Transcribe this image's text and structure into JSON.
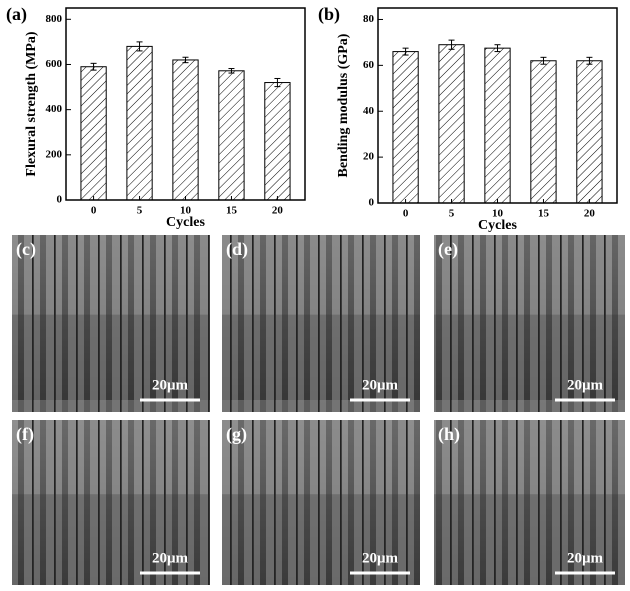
{
  "chart_data": [
    {
      "type": "bar",
      "panel": "(a)",
      "y_label": "Flexural strength (MPa)",
      "x_label": "Cycles",
      "categories": [
        "0",
        "5",
        "10",
        "15",
        "20"
      ],
      "values": [
        590,
        680,
        620,
        572,
        520
      ],
      "errors": [
        15,
        20,
        12,
        10,
        18
      ],
      "ylim": [
        0,
        850
      ],
      "yticks": [
        0,
        200,
        400,
        600,
        800
      ]
    },
    {
      "type": "bar",
      "panel": "(b)",
      "y_label": "Bending modulus (GPa)",
      "x_label": "Cycles",
      "categories": [
        "0",
        "5",
        "10",
        "15",
        "20"
      ],
      "values": [
        66,
        69,
        67.5,
        62,
        62
      ],
      "errors": [
        1.5,
        2,
        1.5,
        1.5,
        1.5
      ],
      "ylim": [
        0,
        85
      ],
      "yticks": [
        0,
        20,
        40,
        60,
        80
      ]
    }
  ],
  "panels": [
    {
      "label": "(c)",
      "scale_bar": "20μm"
    },
    {
      "label": "(d)",
      "scale_bar": "20μm"
    },
    {
      "label": "(e)",
      "scale_bar": "20μm"
    },
    {
      "label": "(f)",
      "scale_bar": "20μm"
    },
    {
      "label": "(g)",
      "scale_bar": "20μm"
    },
    {
      "label": "(h)",
      "scale_bar": "20μm"
    }
  ]
}
